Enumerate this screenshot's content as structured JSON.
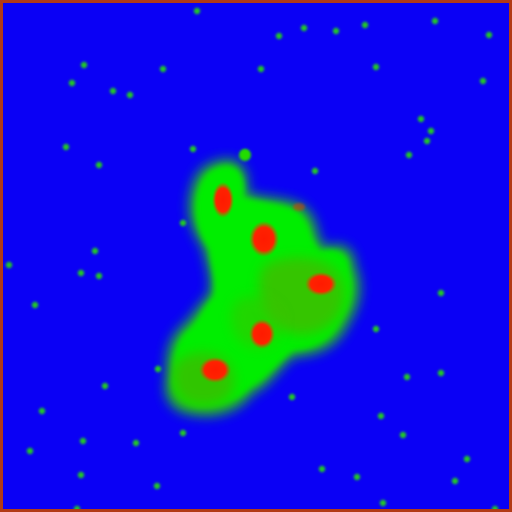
{
  "image": {
    "type": "false-color fluorescence microscopy",
    "colors": {
      "background": "#0a00f5",
      "border": "#b23a16",
      "cell_body": "#00ee00",
      "cell_body_dark": "#3fcf00",
      "nucleus": "#ff1a00",
      "nucleus_halo": "#c85a00",
      "speckle": "#22cc22"
    },
    "counts": {
      "visible_nuclei": 6
    }
  }
}
